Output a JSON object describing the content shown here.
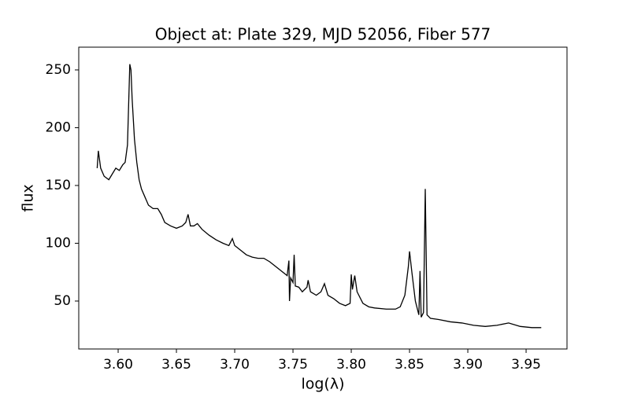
{
  "chart_data": {
    "type": "line",
    "title": "Object at: Plate 329, MJD 52056, Fiber 577",
    "x_label": "log(λ)",
    "y_label": "flux",
    "x": [
      3.582,
      3.583,
      3.585,
      3.588,
      3.592,
      3.595,
      3.598,
      3.601,
      3.604,
      3.606,
      3.608,
      3.609,
      3.61,
      3.611,
      3.612,
      3.614,
      3.616,
      3.618,
      3.62,
      3.623,
      3.626,
      3.63,
      3.634,
      3.637,
      3.64,
      3.645,
      3.65,
      3.655,
      3.658,
      3.66,
      3.662,
      3.665,
      3.668,
      3.672,
      3.678,
      3.684,
      3.69,
      3.695,
      3.698,
      3.7,
      3.705,
      3.71,
      3.715,
      3.72,
      3.725,
      3.73,
      3.735,
      3.74,
      3.745,
      3.7465,
      3.747,
      3.748,
      3.75,
      3.751,
      3.752,
      3.755,
      3.758,
      3.762,
      3.763,
      3.765,
      3.77,
      3.774,
      3.777,
      3.78,
      3.785,
      3.79,
      3.795,
      3.799,
      3.8,
      3.801,
      3.803,
      3.805,
      3.81,
      3.815,
      3.82,
      3.83,
      3.838,
      3.842,
      3.846,
      3.849,
      3.85,
      3.852,
      3.855,
      3.858,
      3.859,
      3.86,
      3.862,
      3.8635,
      3.865,
      3.868,
      3.875,
      3.885,
      3.895,
      3.905,
      3.915,
      3.925,
      3.935,
      3.945,
      3.955,
      3.963
    ],
    "series": [
      {
        "name": "flux",
        "color": "#000000",
        "values": [
          165,
          180,
          165,
          158,
          155,
          160,
          165,
          163,
          168,
          170,
          185,
          220,
          255,
          250,
          225,
          190,
          170,
          155,
          147,
          140,
          133,
          130,
          130,
          125,
          118,
          115,
          113,
          115,
          118,
          125,
          115,
          115,
          117,
          112,
          107,
          103,
          100,
          98,
          104,
          98,
          94,
          90,
          88,
          87,
          87,
          84,
          80,
          76,
          72,
          85,
          50,
          70,
          66,
          90,
          63,
          62,
          58,
          62,
          68,
          58,
          55,
          58,
          65,
          55,
          52,
          48,
          46,
          48,
          73,
          60,
          72,
          58,
          48,
          45,
          44,
          43,
          43,
          45,
          55,
          80,
          93,
          75,
          50,
          38,
          76,
          36,
          40,
          147,
          38,
          35,
          34,
          32,
          31,
          29,
          28,
          29,
          31,
          28,
          27,
          27
        ]
      }
    ],
    "xlim": [
      3.5662,
      3.9851
    ],
    "ylim": [
      8.5,
      269.7
    ],
    "xticks": [
      {
        "value": 3.6,
        "label": "3.60"
      },
      {
        "value": 3.65,
        "label": "3.65"
      },
      {
        "value": 3.7,
        "label": "3.70"
      },
      {
        "value": 3.75,
        "label": "3.75"
      },
      {
        "value": 3.8,
        "label": "3.80"
      },
      {
        "value": 3.85,
        "label": "3.85"
      },
      {
        "value": 3.9,
        "label": "3.90"
      },
      {
        "value": 3.95,
        "label": "3.95"
      }
    ],
    "yticks": [
      50,
      100,
      150,
      200,
      250
    ]
  }
}
